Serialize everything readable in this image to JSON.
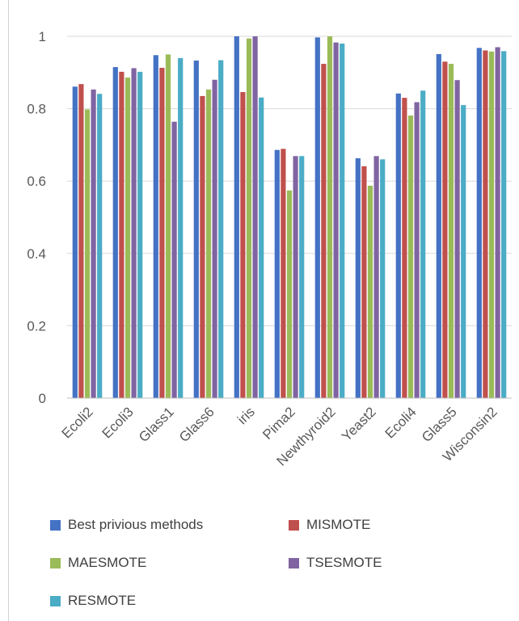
{
  "chart_data": {
    "type": "bar",
    "categories": [
      "Ecoli2",
      "Ecoli3",
      "Glass1",
      "Glass6",
      "iris",
      "Pima2",
      "Newthyroid2",
      "Yeast2",
      "Ecoli4",
      "Glass5",
      "Wisconsin2"
    ],
    "series": [
      {
        "name": "Best privious methods",
        "color": "#4472c4",
        "values": [
          0.861,
          0.915,
          0.948,
          0.933,
          1.0,
          0.686,
          0.997,
          0.663,
          0.842,
          0.951,
          0.968
        ]
      },
      {
        "name": "MISMOTE",
        "color": "#c0504d",
        "values": [
          0.868,
          0.902,
          0.913,
          0.835,
          0.846,
          0.689,
          0.924,
          0.641,
          0.83,
          0.93,
          0.961
        ]
      },
      {
        "name": "MAESMOTE",
        "color": "#9bbb59",
        "values": [
          0.798,
          0.886,
          0.95,
          0.853,
          0.994,
          0.574,
          1.0,
          0.587,
          0.781,
          0.924,
          0.958
        ]
      },
      {
        "name": "TSESMOTE",
        "color": "#8064a2",
        "values": [
          0.853,
          0.912,
          0.764,
          0.88,
          1.0,
          0.669,
          0.983,
          0.669,
          0.818,
          0.879,
          0.97
        ]
      },
      {
        "name": "RESMOTE",
        "color": "#4bacc6",
        "values": [
          0.841,
          0.902,
          0.94,
          0.934,
          0.831,
          0.669,
          0.98,
          0.66,
          0.85,
          0.81,
          0.959
        ]
      }
    ],
    "yticks": [
      "0",
      "0.2",
      "0.4",
      "0.6",
      "0.8",
      "1"
    ],
    "ylim": [
      0,
      1
    ],
    "grid": true,
    "legend_position": "bottom",
    "title": "",
    "xlabel": "",
    "ylabel": ""
  }
}
